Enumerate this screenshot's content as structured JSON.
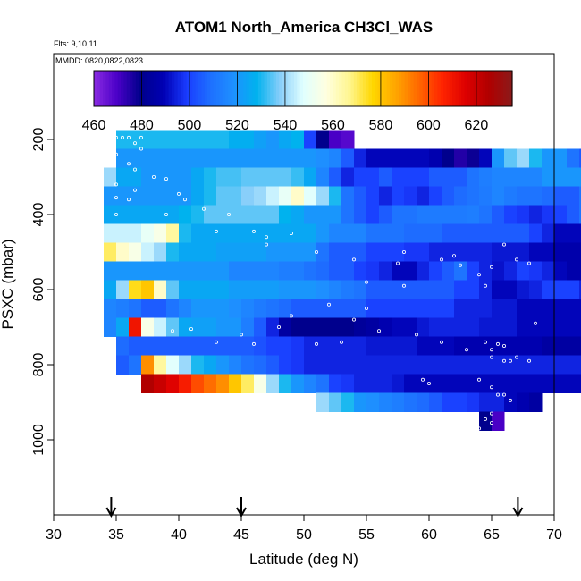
{
  "title": "ATOM1 North_America CH3Cl_WAS",
  "flights_text": "Flts: 9,10,11",
  "dates_text": "MMDD: 0820,0822,0823",
  "chart_data": {
    "type": "heatmap",
    "title": "ATOM1 North_America CH3Cl_WAS",
    "xlabel": "Latitude (deg N)",
    "ylabel": "PSXC (mbar)",
    "xlim": [
      30,
      70
    ],
    "ylim": [
      1000,
      0
    ],
    "x_ticks": [
      30,
      35,
      40,
      45,
      50,
      55,
      60,
      65,
      70
    ],
    "y_ticks": [
      200,
      400,
      600,
      800,
      1000
    ],
    "grid": false,
    "colorbar": {
      "range": [
        460,
        635
      ],
      "tick_values": [
        460,
        480,
        500,
        520,
        540,
        560,
        580,
        600,
        620
      ],
      "colors": [
        "#8a2be2",
        "#4b00c8",
        "#00008b",
        "#0000b4",
        "#1a3cff",
        "#1e6fff",
        "#1e90ff",
        "#00b2ee",
        "#87cefa",
        "#e0ffff",
        "#ffffe0",
        "#fff68f",
        "#ffd700",
        "#ffa500",
        "#ff6600",
        "#ff2400",
        "#dd0000",
        "#b00000",
        "#8b1a1a"
      ]
    },
    "cell_size": {
      "dlat": 1,
      "dp": 50
    },
    "rows": [
      {
        "p": 200,
        "start": 35,
        "values": [
          530,
          530,
          530,
          530,
          530,
          530,
          530,
          530,
          530,
          527,
          527,
          523,
          520,
          525,
          528,
          500,
          480,
          470,
          468
        ]
      },
      {
        "p": 250,
        "start": 35,
        "values": [
          520,
          520,
          520,
          520,
          520,
          520,
          520,
          520,
          520,
          520,
          520,
          520,
          520,
          520,
          520,
          520,
          518,
          515,
          505,
          495,
          490,
          490,
          490,
          490,
          490,
          488,
          480,
          475,
          478,
          490,
          520,
          535,
          540,
          530,
          520,
          520,
          510,
          505,
          505,
          508,
          505,
          510,
          505,
          500
        ]
      },
      {
        "p": 300,
        "start": 34,
        "values": [
          540,
          525,
          525,
          520,
          520,
          520,
          520,
          525,
          530,
          533,
          533,
          535,
          535,
          535,
          535,
          532,
          525,
          515,
          505,
          495,
          500,
          500,
          505,
          500,
          500,
          500,
          505,
          505,
          505,
          510,
          513,
          515,
          515,
          515,
          515,
          520,
          520,
          520,
          520,
          520,
          520,
          520,
          520,
          520,
          520
        ]
      },
      {
        "p": 350,
        "start": 34,
        "values": [
          520,
          520,
          520,
          520,
          520,
          520,
          520,
          525,
          530,
          535,
          535,
          538,
          540,
          545,
          550,
          560,
          548,
          540,
          530,
          510,
          505,
          500,
          495,
          500,
          498,
          495,
          500,
          505,
          508,
          510,
          512,
          515,
          512,
          510,
          510,
          508,
          505,
          505,
          510,
          515,
          500,
          500,
          505,
          503
        ]
      },
      {
        "p": 400,
        "start": 34,
        "values": [
          525,
          525,
          525,
          525,
          525,
          525,
          528,
          530,
          535,
          535,
          535,
          535,
          535,
          535,
          528,
          525,
          520,
          520,
          520,
          510,
          505,
          500,
          505,
          510,
          510,
          512,
          512,
          512,
          512,
          513,
          510,
          505,
          500,
          498,
          495,
          498,
          500,
          505,
          510,
          510,
          505,
          500,
          500,
          500
        ]
      },
      {
        "p": 450,
        "start": 34,
        "values": [
          545,
          545,
          545,
          550,
          555,
          565,
          530,
          525,
          525,
          525,
          525,
          525,
          525,
          525,
          525,
          525,
          525,
          520,
          515,
          515,
          515,
          510,
          510,
          510,
          508,
          508,
          508,
          505,
          505,
          505,
          505,
          505,
          505,
          505,
          500,
          495,
          490,
          490,
          490,
          490,
          490,
          490,
          500
        ]
      },
      {
        "p": 500,
        "start": 34,
        "values": [
          570,
          560,
          555,
          545,
          540,
          530,
          525,
          525,
          525,
          523,
          523,
          523,
          523,
          520,
          520,
          520,
          520,
          510,
          505,
          505,
          505,
          500,
          500,
          500,
          498,
          498,
          495,
          495,
          495,
          495,
          495,
          493,
          493,
          493,
          490,
          490,
          487,
          487,
          487,
          487,
          490,
          495,
          500
        ]
      },
      {
        "p": 550,
        "start": 34,
        "values": [
          520,
          520,
          520,
          520,
          520,
          520,
          520,
          520,
          520,
          520,
          515,
          515,
          515,
          515,
          513,
          513,
          510,
          508,
          505,
          505,
          500,
          498,
          495,
          490,
          490,
          495,
          500,
          505,
          510,
          500,
          495,
          492,
          495,
          500,
          498,
          495,
          490,
          487,
          487,
          490,
          495,
          500,
          505
        ]
      },
      {
        "p": 600,
        "start": 34,
        "values": [
          525,
          540,
          575,
          580,
          560,
          535,
          525,
          525,
          525,
          525,
          522,
          522,
          522,
          522,
          520,
          520,
          520,
          518,
          515,
          512,
          510,
          505,
          505,
          505,
          505,
          505,
          505,
          505,
          500,
          500,
          495,
          490,
          490,
          493,
          495,
          500,
          500,
          500,
          495,
          485,
          488,
          495,
          510
        ]
      },
      {
        "p": 650,
        "start": 34,
        "values": [
          515,
          513,
          510,
          505,
          505,
          510,
          515,
          520,
          520,
          520,
          518,
          515,
          512,
          510,
          508,
          505,
          505,
          505,
          505,
          505,
          505,
          500,
          500,
          500,
          500,
          500,
          500,
          500,
          495,
          495,
          495,
          493,
          493,
          490,
          490,
          490,
          490,
          490,
          490,
          490,
          495,
          500,
          500
        ]
      },
      {
        "p": 700,
        "start": 34,
        "values": [
          515,
          525,
          610,
          555,
          545,
          535,
          525,
          523,
          523,
          520,
          520,
          513,
          505,
          495,
          485,
          480,
          480,
          480,
          480,
          480,
          483,
          485,
          488,
          490,
          490,
          493,
          495,
          495,
          495,
          495,
          493,
          493,
          493,
          490,
          490,
          490,
          490,
          490,
          490,
          490,
          495,
          500,
          505
        ]
      },
      {
        "p": 750,
        "start": 35,
        "values": [
          508,
          505,
          505,
          505,
          505,
          505,
          505,
          505,
          505,
          505,
          505,
          503,
          500,
          500,
          498,
          495,
          495,
          495,
          495,
          495,
          493,
          493,
          493,
          493,
          490,
          490,
          490,
          488,
          488,
          488,
          488,
          488,
          488,
          488,
          485,
          485,
          485,
          485,
          488,
          492,
          498,
          500
        ]
      },
      {
        "p": 800,
        "start": 35,
        "values": [
          505,
          510,
          590,
          565,
          548,
          540,
          530,
          525,
          520,
          515,
          510,
          508,
          505,
          500,
          498,
          495,
          495,
          495,
          495,
          495,
          495,
          495,
          495,
          495,
          495,
          495,
          495,
          495,
          495,
          495,
          495,
          495,
          495,
          495,
          495,
          495,
          495,
          495,
          495,
          495
        ]
      },
      {
        "p": 850,
        "start": 37,
        "values": [
          625,
          620,
          615,
          608,
          600,
          595,
          590,
          580,
          570,
          555,
          540,
          530,
          520,
          515,
          510,
          500,
          498,
          495,
          495,
          495,
          493,
          490,
          490,
          490,
          490,
          490,
          490,
          490,
          490,
          490,
          490,
          490,
          490,
          490,
          490,
          490,
          490,
          490,
          490,
          490,
          490,
          490
        ]
      },
      {
        "p": 900,
        "start": 51,
        "values": [
          540,
          535,
          530,
          520,
          518,
          515,
          513,
          510,
          508,
          505,
          500,
          500,
          498,
          495,
          495,
          490,
          488,
          485
        ]
      },
      {
        "p": 950,
        "start": 64,
        "values": [
          480,
          470
        ]
      }
    ],
    "sample_points": [
      [
        35,
        195
      ],
      [
        35.5,
        195
      ],
      [
        36,
        195
      ],
      [
        37,
        195
      ],
      [
        36.5,
        210
      ],
      [
        37,
        225
      ],
      [
        35,
        240
      ],
      [
        36,
        265
      ],
      [
        34.5,
        265
      ],
      [
        36.5,
        280
      ],
      [
        38,
        300
      ],
      [
        39,
        305
      ],
      [
        35,
        320
      ],
      [
        36.5,
        335
      ],
      [
        40,
        345
      ],
      [
        35,
        355
      ],
      [
        36,
        360
      ],
      [
        40.5,
        360
      ],
      [
        35,
        400
      ],
      [
        39,
        400
      ],
      [
        42,
        385
      ],
      [
        44,
        400
      ],
      [
        43,
        445
      ],
      [
        46,
        445
      ],
      [
        47,
        460
      ],
      [
        49,
        450
      ],
      [
        47,
        480
      ],
      [
        51,
        500
      ],
      [
        54,
        520
      ],
      [
        58,
        500
      ],
      [
        61,
        520
      ],
      [
        62,
        510
      ],
      [
        62.5,
        535
      ],
      [
        65,
        540
      ],
      [
        66,
        480
      ],
      [
        67,
        520
      ],
      [
        68,
        530
      ],
      [
        64,
        560
      ],
      [
        64.5,
        590
      ],
      [
        57.5,
        530
      ],
      [
        55,
        580
      ],
      [
        58,
        590
      ],
      [
        55,
        650
      ],
      [
        54,
        680
      ],
      [
        52,
        640
      ],
      [
        49,
        670
      ],
      [
        48,
        700
      ],
      [
        43,
        740
      ],
      [
        41,
        705
      ],
      [
        39.5,
        710
      ],
      [
        45,
        720
      ],
      [
        46,
        745
      ],
      [
        51,
        745
      ],
      [
        53,
        740
      ],
      [
        56,
        710
      ],
      [
        59,
        720
      ],
      [
        61,
        740
      ],
      [
        63,
        760
      ],
      [
        65,
        780
      ],
      [
        66,
        790
      ],
      [
        66.5,
        790
      ],
      [
        67,
        780
      ],
      [
        68,
        790
      ],
      [
        65,
        760
      ],
      [
        65.5,
        745
      ],
      [
        66,
        750
      ],
      [
        64.5,
        740
      ],
      [
        68.5,
        690
      ],
      [
        64,
        840
      ],
      [
        65,
        860
      ],
      [
        65.5,
        880
      ],
      [
        66,
        880
      ],
      [
        66.5,
        895
      ],
      [
        65,
        930
      ],
      [
        64.5,
        945
      ],
      [
        65,
        955
      ],
      [
        59.5,
        840
      ],
      [
        60,
        850
      ],
      [
        62.5,
        950
      ],
      [
        63.5,
        965
      ],
      [
        64,
        970
      ]
    ],
    "markers": [
      {
        "lat": 34.6
      },
      {
        "lat": 45
      },
      {
        "lat": 67.1
      }
    ]
  }
}
